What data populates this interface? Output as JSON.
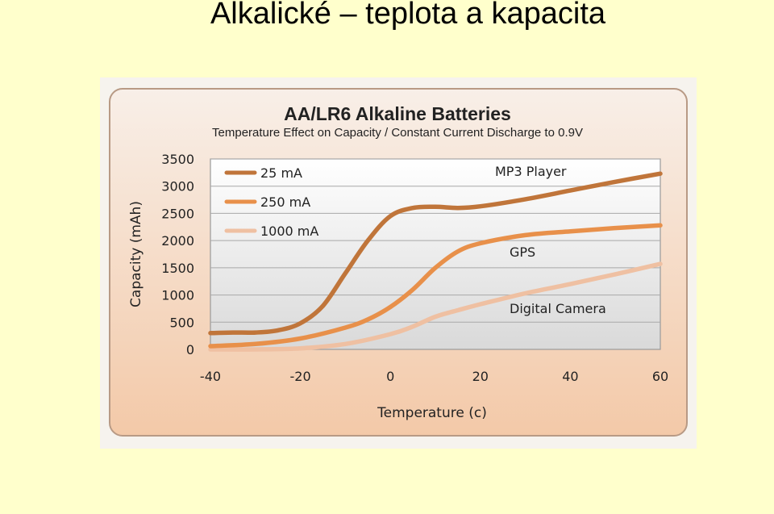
{
  "slide": {
    "title": "Alkalické – teplota a kapacita"
  },
  "colors": {
    "page_background": "#ffffcc",
    "panel_top": "#f8efe8",
    "panel_bottom": "#f3c9a8",
    "series_25mA": "#c0753a",
    "series_250mA": "#e8904a",
    "series_1000mA": "#efc0a2"
  },
  "chart_data": {
    "type": "line",
    "title": "AA/LR6 Alkaline Batteries",
    "subtitle": "Temperature Effect on Capacity / Constant Current Discharge to 0.9V",
    "xlabel": "Temperature (c)",
    "ylabel": "Capacity (mAh)",
    "xlim": [
      -40,
      60
    ],
    "ylim": [
      0,
      3500
    ],
    "x_ticks": [
      "-40",
      "-20",
      "0",
      "20",
      "40",
      "60"
    ],
    "y_ticks": [
      "0",
      "500",
      "1000",
      "1500",
      "2000",
      "2500",
      "3000",
      "3500"
    ],
    "grid": true,
    "legend_position": "top-left",
    "series": [
      {
        "name": "25 mA",
        "annotation": "MP3 Player",
        "points": [
          [
            -40,
            300
          ],
          [
            -35,
            310
          ],
          [
            -30,
            310
          ],
          [
            -25,
            350
          ],
          [
            -20,
            480
          ],
          [
            -15,
            800
          ],
          [
            -10,
            1400
          ],
          [
            -5,
            2000
          ],
          [
            0,
            2450
          ],
          [
            5,
            2600
          ],
          [
            10,
            2620
          ],
          [
            15,
            2600
          ],
          [
            20,
            2630
          ],
          [
            30,
            2760
          ],
          [
            40,
            2920
          ],
          [
            50,
            3080
          ],
          [
            60,
            3230
          ]
        ]
      },
      {
        "name": "250 mA",
        "annotation": "GPS",
        "points": [
          [
            -40,
            60
          ],
          [
            -30,
            100
          ],
          [
            -20,
            200
          ],
          [
            -10,
            400
          ],
          [
            -5,
            550
          ],
          [
            0,
            780
          ],
          [
            5,
            1100
          ],
          [
            10,
            1500
          ],
          [
            15,
            1800
          ],
          [
            20,
            1950
          ],
          [
            30,
            2100
          ],
          [
            40,
            2170
          ],
          [
            50,
            2230
          ],
          [
            60,
            2280
          ]
        ]
      },
      {
        "name": "1000 mA",
        "annotation": "Digital Camera",
        "points": [
          [
            -40,
            0
          ],
          [
            -30,
            0
          ],
          [
            -20,
            20
          ],
          [
            -10,
            100
          ],
          [
            0,
            280
          ],
          [
            5,
            420
          ],
          [
            10,
            600
          ],
          [
            15,
            720
          ],
          [
            20,
            830
          ],
          [
            30,
            1030
          ],
          [
            40,
            1200
          ],
          [
            50,
            1380
          ],
          [
            60,
            1570
          ]
        ]
      }
    ]
  }
}
